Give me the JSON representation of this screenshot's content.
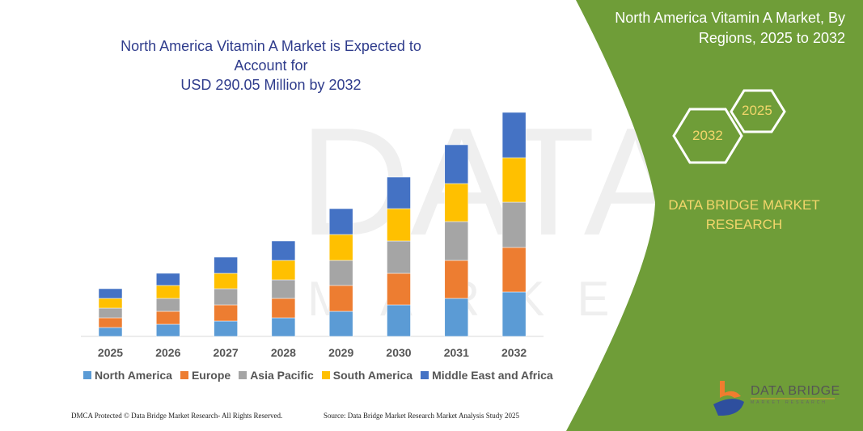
{
  "title_line1": "North America Vitamin A Market is Expected to Account for",
  "title_line2": "USD 290.05 Million by 2032",
  "side_title_line1": "North America Vitamin A Market, By",
  "side_title_line2": "Regions, 2025 to 2032",
  "hex_start": "2025",
  "hex_end": "2032",
  "brand_line1": "DATA BRIDGE MARKET",
  "brand_line2": "RESEARCH",
  "logo_text": "DATA BRIDGE",
  "logo_subtext": "MARKET RESEARCH",
  "footer_left": "DMCA Protected © Data Bridge Market Research- All Rights Reserved.",
  "footer_right": "Source: Data Bridge Market Research Market Analysis Study 2025",
  "colors": {
    "panel": "#6f9d38",
    "brand_text": "#f2d66b",
    "title": "#2f3c8c"
  },
  "chart_data": {
    "type": "bar",
    "stacked": true,
    "title": "North America Vitamin A Market is Expected to Account for USD 290.05 Million by 2032",
    "xlabel": "",
    "ylabel": "",
    "y_axis_shown": false,
    "grid": false,
    "legend_position": "bottom",
    "categories": [
      "2025",
      "2026",
      "2027",
      "2028",
      "2029",
      "2030",
      "2031",
      "2032"
    ],
    "series": [
      {
        "name": "North America",
        "color": "#5b9bd5",
        "values": [
          11,
          15,
          19,
          23,
          31,
          39,
          47,
          55
        ]
      },
      {
        "name": "Europe",
        "color": "#ed7d31",
        "values": [
          12,
          16,
          20,
          24,
          32,
          39,
          47,
          55
        ]
      },
      {
        "name": "Asia Pacific",
        "color": "#a5a5a5",
        "values": [
          12,
          16,
          20,
          23,
          31,
          40,
          48,
          56
        ]
      },
      {
        "name": "South America",
        "color": "#ffc000",
        "values": [
          12,
          16,
          19,
          24,
          32,
          40,
          47,
          55
        ]
      },
      {
        "name": "Middle East and Africa",
        "color": "#4472c4",
        "values": [
          12,
          15,
          20,
          24,
          32,
          39,
          48,
          56
        ]
      }
    ]
  }
}
